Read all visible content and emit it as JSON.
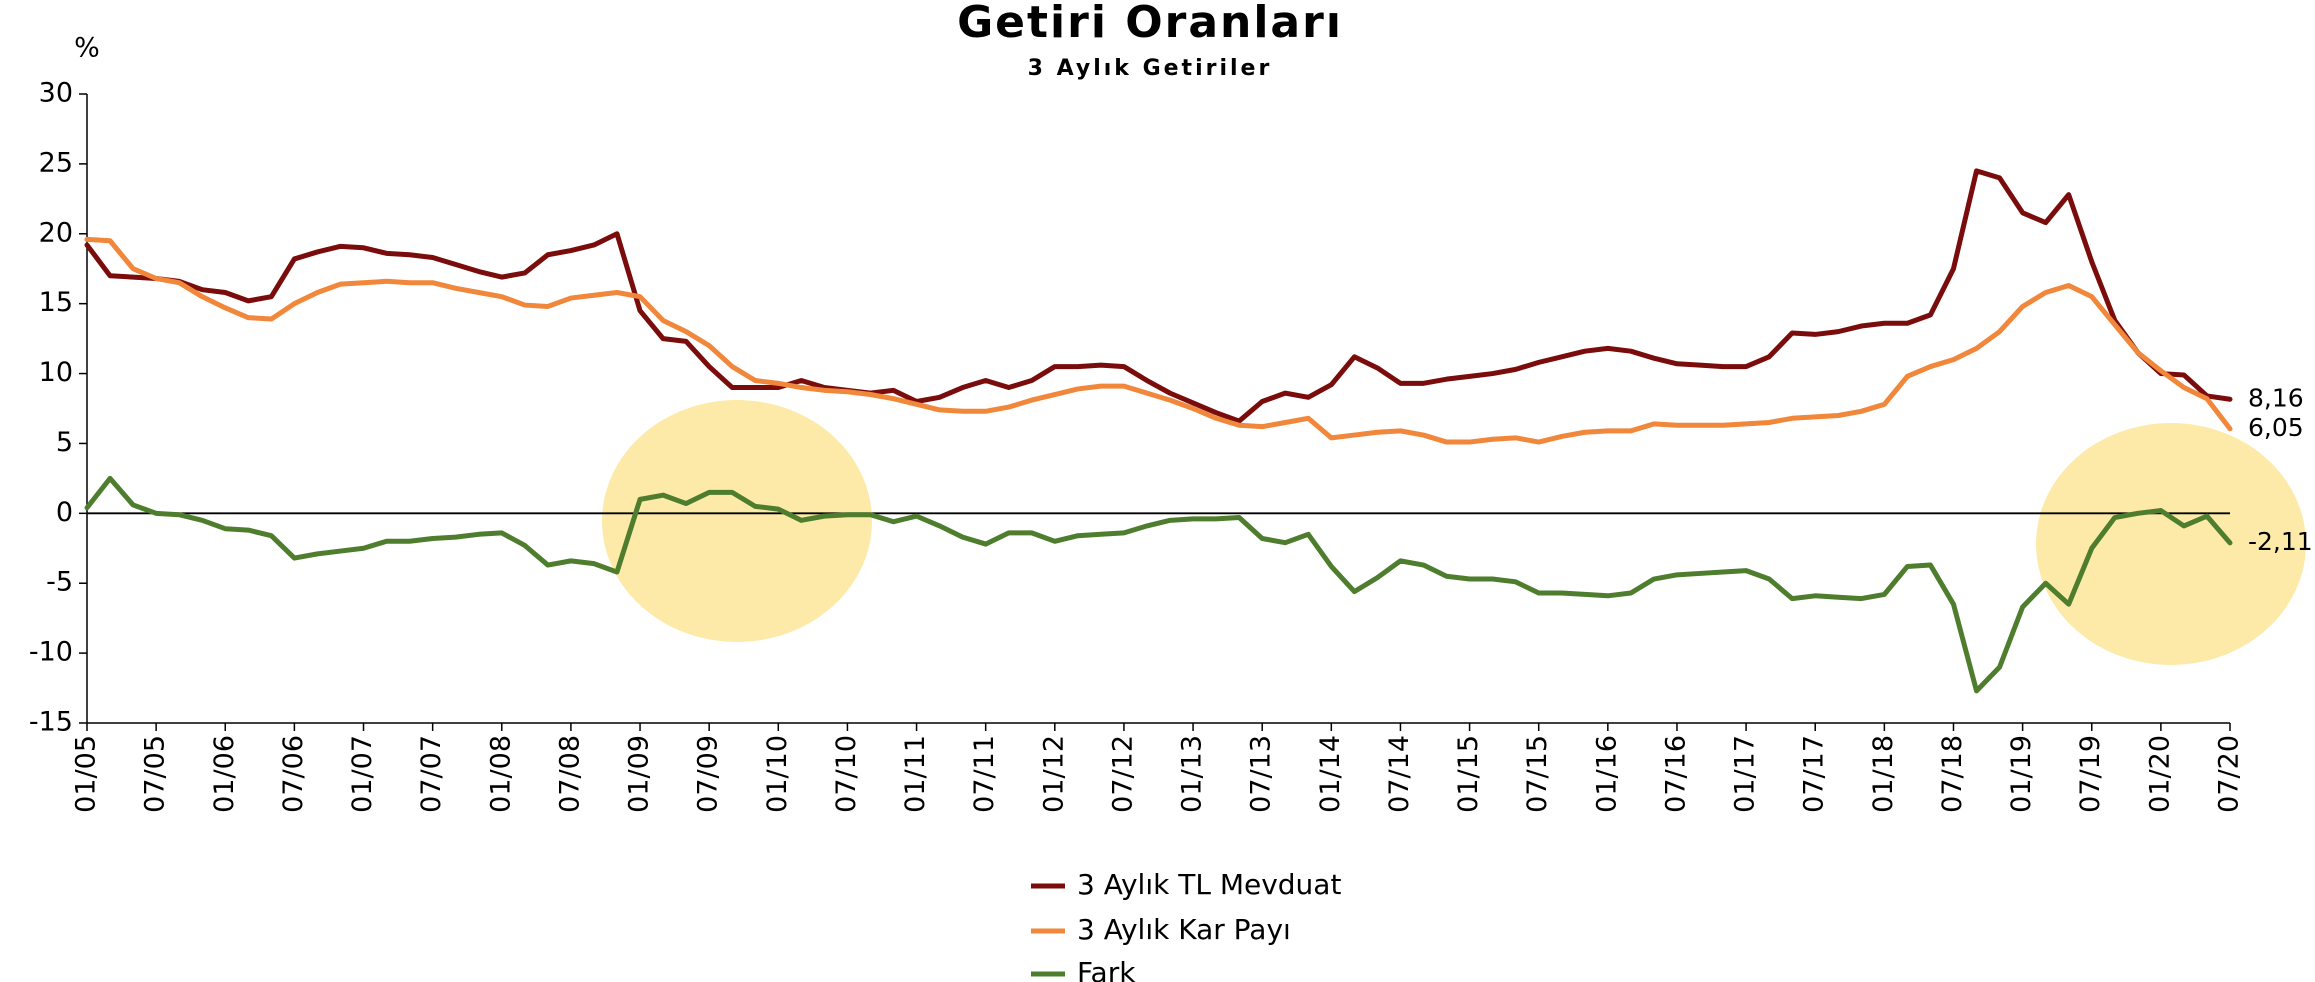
{
  "chart_data": {
    "type": "line",
    "title": "Getiri Oranları",
    "subtitle": "3 Aylık Getiriler",
    "y_label": "%",
    "categories": [
      "01/05",
      null,
      null,
      "07/05",
      null,
      null,
      "01/06",
      null,
      null,
      "07/06",
      null,
      null,
      "01/07",
      null,
      null,
      "07/07",
      null,
      null,
      "01/08",
      null,
      null,
      "07/08",
      null,
      null,
      "01/09",
      null,
      null,
      "07/09",
      null,
      null,
      "01/10",
      null,
      null,
      "07/10",
      null,
      null,
      "01/11",
      null,
      null,
      "07/11",
      null,
      null,
      "01/12",
      null,
      null,
      "07/12",
      null,
      null,
      "01/13",
      null,
      null,
      "07/13",
      null,
      null,
      "01/14",
      null,
      null,
      "07/14",
      null,
      null,
      "01/15",
      null,
      null,
      "07/15",
      null,
      null,
      "01/16",
      null,
      null,
      "07/16",
      null,
      null,
      "01/17",
      null,
      null,
      "07/17",
      null,
      null,
      "01/18",
      null,
      null,
      "07/18",
      null,
      null,
      "01/19",
      null,
      null,
      "07/19",
      null,
      null,
      "01/20",
      null,
      null,
      "07/20"
    ],
    "series": [
      {
        "name": "3 Aylık TL Mevduat",
        "color": "#7a0c0c",
        "values": [
          19.2,
          17,
          16.9,
          16.8,
          16.6,
          16,
          15.8,
          15.2,
          15.5,
          18.2,
          18.7,
          19.1,
          19,
          18.6,
          18.5,
          18.3,
          17.8,
          17.3,
          16.9,
          17.2,
          18.5,
          18.8,
          19.2,
          20,
          14.5,
          12.5,
          12.3,
          10.5,
          9,
          9,
          9,
          9.5,
          9,
          8.8,
          8.6,
          8.8,
          8,
          8.3,
          9,
          9.5,
          9,
          9.5,
          10.5,
          10.5,
          10.6,
          10.5,
          9.5,
          8.6,
          7.9,
          7.2,
          6.6,
          8,
          8.6,
          8.3,
          9.2,
          11.2,
          10.4,
          9.3,
          9.3,
          9.6,
          9.8,
          10,
          10.3,
          10.8,
          11.2,
          11.6,
          11.8,
          11.6,
          11.1,
          10.7,
          10.6,
          10.5,
          10.5,
          11.2,
          12.9,
          12.8,
          13,
          13.4,
          13.6,
          13.6,
          14.2,
          17.5,
          24.5,
          24,
          21.5,
          20.8,
          22.8,
          18,
          13.8,
          11.5,
          10,
          9.9,
          8.4,
          8.16
        ],
        "value_labels": [
          null,
          null,
          null,
          null,
          null,
          null,
          null,
          null,
          null,
          null,
          null,
          null,
          null,
          null,
          null,
          null,
          null,
          null,
          null,
          null,
          null,
          null,
          null,
          null,
          null,
          null,
          null,
          null,
          null,
          null,
          null,
          null,
          null,
          null,
          null,
          null,
          null,
          null,
          null,
          null,
          null,
          null,
          null,
          null,
          null,
          null,
          null,
          null,
          null,
          null,
          null,
          null,
          null,
          null,
          null,
          null,
          null,
          null,
          null,
          null,
          null,
          null,
          null,
          null,
          null,
          null,
          null,
          null,
          null,
          null,
          null,
          null,
          null,
          null,
          null,
          null,
          null,
          null,
          null,
          null,
          null,
          null,
          null,
          null,
          null,
          null,
          null,
          null,
          null,
          null,
          null,
          null,
          null,
          "8,16"
        ]
      },
      {
        "name": "3 Aylık Kar Payı",
        "color": "#f0873a",
        "values": [
          19.6,
          19.5,
          17.5,
          16.8,
          16.5,
          15.5,
          14.7,
          14,
          13.9,
          15,
          15.8,
          16.4,
          16.5,
          16.6,
          16.5,
          16.5,
          16.1,
          15.8,
          15.5,
          14.9,
          14.8,
          15.4,
          15.6,
          15.8,
          15.5,
          13.8,
          13,
          12,
          10.5,
          9.5,
          9.3,
          9,
          8.8,
          8.7,
          8.5,
          8.2,
          7.8,
          7.4,
          7.3,
          7.3,
          7.6,
          8.1,
          8.5,
          8.9,
          9.1,
          9.1,
          8.6,
          8.1,
          7.5,
          6.8,
          6.3,
          6.2,
          6.5,
          6.8,
          5.4,
          5.6,
          5.8,
          5.9,
          5.6,
          5.1,
          5.1,
          5.3,
          5.4,
          5.1,
          5.5,
          5.8,
          5.9,
          5.9,
          6.4,
          6.3,
          6.3,
          6.3,
          6.4,
          6.5,
          6.8,
          6.9,
          7,
          7.3,
          7.8,
          9.8,
          10.5,
          11,
          11.8,
          13,
          14.8,
          15.8,
          16.3,
          15.5,
          13.5,
          11.5,
          10.2,
          9,
          8.2,
          6.05
        ],
        "value_labels": [
          null,
          null,
          null,
          null,
          null,
          null,
          null,
          null,
          null,
          null,
          null,
          null,
          null,
          null,
          null,
          null,
          null,
          null,
          null,
          null,
          null,
          null,
          null,
          null,
          null,
          null,
          null,
          null,
          null,
          null,
          null,
          null,
          null,
          null,
          null,
          null,
          null,
          null,
          null,
          null,
          null,
          null,
          null,
          null,
          null,
          null,
          null,
          null,
          null,
          null,
          null,
          null,
          null,
          null,
          null,
          null,
          null,
          null,
          null,
          null,
          null,
          null,
          null,
          null,
          null,
          null,
          null,
          null,
          null,
          null,
          null,
          null,
          null,
          null,
          null,
          null,
          null,
          null,
          null,
          null,
          null,
          null,
          null,
          null,
          null,
          null,
          null,
          null,
          null,
          null,
          null,
          null,
          null,
          "6,05"
        ]
      },
      {
        "name": "Fark",
        "color": "#4e7d2e",
        "values": [
          0.4,
          2.5,
          0.6,
          0,
          -0.1,
          -0.5,
          -1.1,
          -1.2,
          -1.6,
          -3.2,
          -2.9,
          -2.7,
          -2.5,
          -2,
          -2,
          -1.8,
          -1.7,
          -1.5,
          -1.4,
          -2.3,
          -3.7,
          -3.4,
          -3.6,
          -4.2,
          1,
          1.3,
          0.7,
          1.5,
          1.5,
          0.5,
          0.3,
          -0.5,
          -0.2,
          -0.1,
          -0.1,
          -0.6,
          -0.2,
          -0.9,
          -1.7,
          -2.2,
          -1.4,
          -1.4,
          -2,
          -1.6,
          -1.5,
          -1.4,
          -0.9,
          -0.5,
          -0.4,
          -0.4,
          -0.3,
          -1.8,
          -2.1,
          -1.5,
          -3.8,
          -5.6,
          -4.6,
          -3.4,
          -3.7,
          -4.5,
          -4.7,
          -4.7,
          -4.9,
          -5.7,
          -5.7,
          -5.8,
          -5.9,
          -5.7,
          -4.7,
          -4.4,
          -4.3,
          -4.2,
          -4.1,
          -4.7,
          -6.1,
          -5.9,
          -6,
          -6.1,
          -5.8,
          -3.8,
          -3.7,
          -6.5,
          -12.7,
          -11,
          -6.7,
          -5,
          -6.5,
          -2.5,
          -0.3,
          0,
          0.2,
          -0.9,
          -0.2,
          -2.11
        ],
        "value_labels": [
          null,
          null,
          null,
          null,
          null,
          null,
          null,
          null,
          null,
          null,
          null,
          null,
          null,
          null,
          null,
          null,
          null,
          null,
          null,
          null,
          null,
          null,
          null,
          null,
          null,
          null,
          null,
          null,
          null,
          null,
          null,
          null,
          null,
          null,
          null,
          null,
          null,
          null,
          null,
          null,
          null,
          null,
          null,
          null,
          null,
          null,
          null,
          null,
          null,
          null,
          null,
          null,
          null,
          null,
          null,
          null,
          null,
          null,
          null,
          null,
          null,
          null,
          null,
          null,
          null,
          null,
          null,
          null,
          null,
          null,
          null,
          null,
          null,
          null,
          null,
          null,
          null,
          null,
          null,
          null,
          null,
          null,
          null,
          null,
          null,
          null,
          null,
          null,
          null,
          null,
          null,
          null,
          null,
          "-2,11"
        ]
      }
    ],
    "ylim": [
      -15,
      30
    ],
    "yticks": [
      -15,
      -10,
      -5,
      0,
      5,
      10,
      15,
      20,
      25,
      30
    ],
    "grid": false,
    "zero_line": true,
    "legend": "bottom"
  }
}
